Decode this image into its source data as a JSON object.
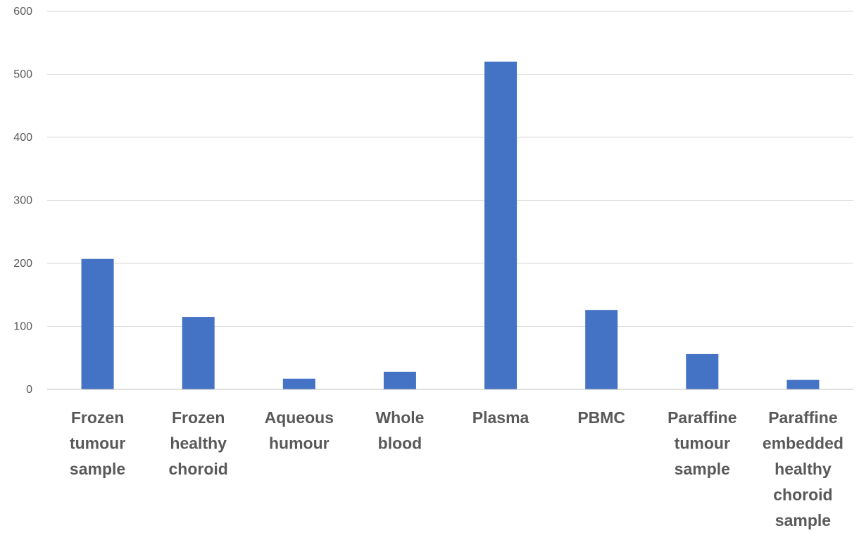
{
  "chart_data": {
    "type": "bar",
    "title": "",
    "xlabel": "",
    "ylabel": "",
    "categories": [
      "Frozen tumour sample",
      "Frozen healthy choroid",
      "Aqueous humour",
      "Whole blood",
      "Plasma",
      "PBMC",
      "Paraffine tumour sample",
      "Paraffine embedded healthy choroid sample"
    ],
    "category_label_lines": [
      [
        "Frozen",
        "tumour",
        "sample"
      ],
      [
        "Frozen",
        "healthy",
        "choroid"
      ],
      [
        "Aqueous",
        "humour"
      ],
      [
        "Whole",
        "blood"
      ],
      [
        "Plasma"
      ],
      [
        "PBMC"
      ],
      [
        "Paraffine",
        "tumour",
        "sample"
      ],
      [
        "Paraffine",
        "embedded",
        "healthy",
        "choroid",
        "sample"
      ]
    ],
    "values": [
      207,
      115,
      17,
      28,
      520,
      126,
      56,
      15
    ],
    "ylim": [
      0,
      600
    ],
    "yticks": [
      "0",
      "100",
      "200",
      "300",
      "400",
      "500",
      "600"
    ],
    "grid": true,
    "legend": "none",
    "bar_color": "#4472c4"
  }
}
